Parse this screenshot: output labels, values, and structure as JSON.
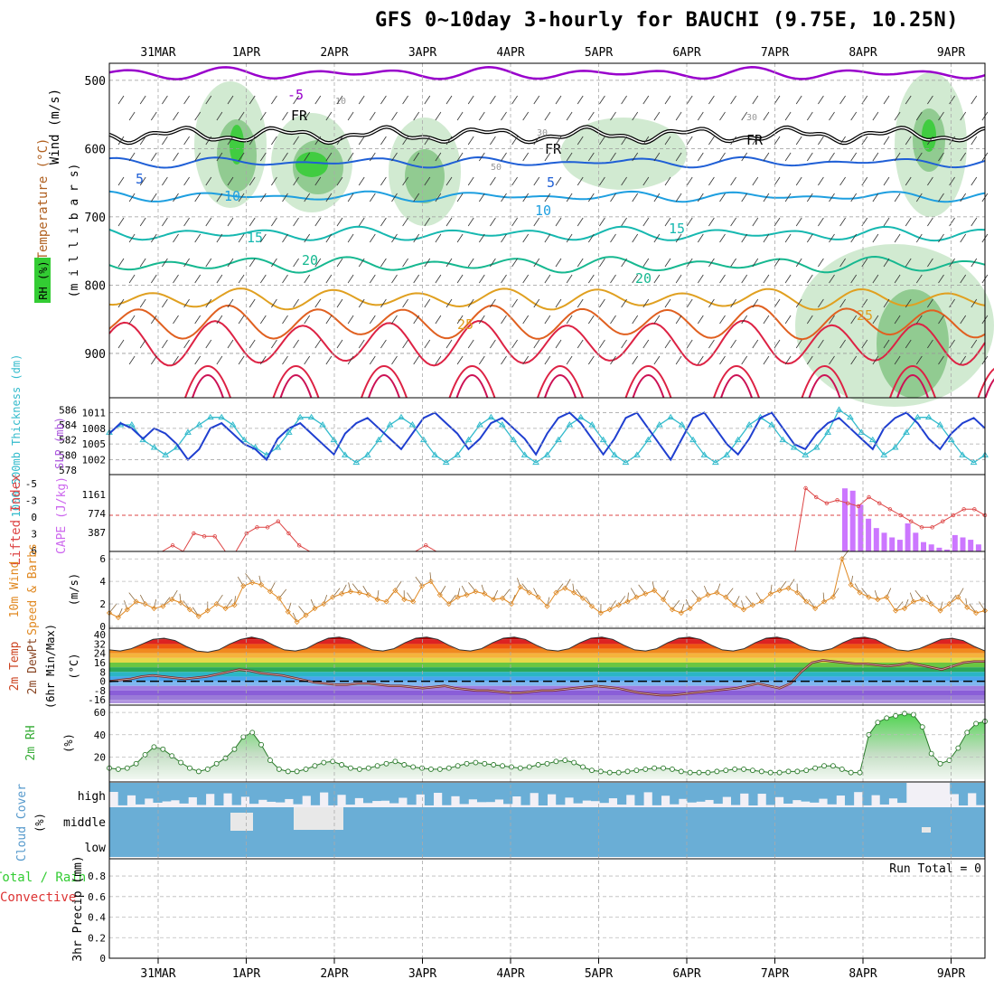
{
  "title": "GFS 0~10day 3-hourly for BAUCHI (9.75E, 10.25N)",
  "date_labels": [
    "31MAR",
    "1APR",
    "2APR",
    "3APR",
    "4APR",
    "5APR",
    "6APR",
    "7APR",
    "8APR",
    "9APR"
  ],
  "colors": {
    "rh_green": "#33cc33",
    "rh_mid": "#86c586",
    "rh_light": "#c9e6c9",
    "temp_cold": "#9900cc",
    "temp_5": "#1f5fd6",
    "temp_10": "#1e9fe0",
    "temp_15": "#16b8b0",
    "temp_20": "#16b890",
    "temp_25": "#e0a020",
    "temp_30": "#e06020",
    "temp_35": "#dd2244",
    "slp": "#1f3fd0",
    "thickness": "#33bbcc",
    "cape": "#cc77ff",
    "li": "#dd4444",
    "wind": "#e08820",
    "rh2m": "#33aa33",
    "cloud": "#6aaed6",
    "precip_green": "#33cc33",
    "precip_red": "#dd3333"
  },
  "panels": {
    "sounding": {
      "labels": {
        "wind": "Wind (m/s)",
        "temperature": "Temperature (°C)",
        "rh": "RH (%)",
        "pressure": "(m i l l i b a r s)"
      },
      "y_ticks": [
        "500",
        "600",
        "700",
        "800",
        "900"
      ],
      "contour_labels": [
        "-5",
        "FR",
        "FR",
        "FR",
        "5",
        "5",
        "10",
        "10",
        "15",
        "15",
        "20",
        "20",
        "25",
        "25",
        "10",
        "30",
        "30",
        "50"
      ]
    },
    "slp": {
      "labels": {
        "thickness": "1000-500mb Thickness (dm)",
        "slp": "SLP (mb)"
      },
      "left_ticks": [
        "586",
        "584",
        "582",
        "580",
        "578"
      ],
      "right_ticks": [
        "1011",
        "1008",
        "1005",
        "1002"
      ]
    },
    "cape": {
      "labels": {
        "li": "Lifted Index",
        "cape": "CAPE (J/kg)"
      },
      "left_ticks": [
        "-5",
        "-3",
        "0",
        "3",
        "6"
      ],
      "right_ticks": [
        "1161",
        "774",
        "387"
      ]
    },
    "wind": {
      "labels": {
        "main": "10m Wind",
        "sub": "Speed & Barbs",
        "unit": "(m/s)"
      },
      "ticks": [
        "6",
        "4",
        "2",
        "0"
      ]
    },
    "temp": {
      "labels": {
        "main": "2m Temp",
        "sub": "2m DewPt",
        "sub2": "(6hr Min/Max)",
        "unit": "(°C)"
      },
      "ticks": [
        "40",
        "32",
        "24",
        "16",
        "8",
        "0",
        "-8",
        "-16"
      ]
    },
    "rh2m": {
      "labels": {
        "main": "2m RH",
        "unit": "(%)"
      },
      "ticks": [
        "60",
        "40",
        "20"
      ]
    },
    "cloud": {
      "labels": {
        "main": "Cloud Cover",
        "unit": "(%)",
        "high": "high",
        "middle": "middle",
        "low": "low"
      }
    },
    "precip": {
      "labels": {
        "main": "3hr Precip (mm)",
        "legend1": "Total / Rain",
        "legend2": "Convective"
      },
      "ticks": [
        "0.8",
        "0.6",
        "0.4",
        "0.2",
        "0"
      ],
      "run_total": "Run Total = 0"
    }
  },
  "chart_data": [
    {
      "type": "line",
      "title": "1000-500mb Thickness (dm) / SLP (mb)",
      "x": "3-hourly steps from 31MAR 00Z to 9APR 18Z",
      "series": [
        {
          "name": "SLP (mb)",
          "axis": "right",
          "values": [
            1007,
            1009,
            1008,
            1006,
            1008,
            1007,
            1005,
            1002,
            1004,
            1008,
            1009,
            1007,
            1005,
            1004,
            1002,
            1006,
            1008,
            1009,
            1007,
            1005,
            1003,
            1007,
            1009,
            1010,
            1008,
            1006,
            1004,
            1007,
            1010,
            1011,
            1009,
            1007,
            1004,
            1006,
            1009,
            1010,
            1008,
            1006,
            1003,
            1007,
            1010,
            1011,
            1009,
            1006,
            1003,
            1006,
            1010,
            1011,
            1008,
            1005,
            1002,
            1006,
            1010,
            1011,
            1008,
            1005,
            1003,
            1006,
            1010,
            1011,
            1008,
            1005,
            1004,
            1007,
            1009,
            1010,
            1008,
            1006,
            1004,
            1008,
            1010,
            1011,
            1009,
            1006,
            1004,
            1007,
            1009,
            1010,
            1008
          ]
        },
        {
          "name": "1000-500mb Thickness (dm)",
          "axis": "left",
          "values": [
            583,
            584,
            584,
            582,
            581,
            580,
            581,
            583,
            584,
            585,
            585,
            584,
            582,
            581,
            580,
            581,
            583,
            585,
            585,
            584,
            582,
            580,
            579,
            580,
            582,
            584,
            585,
            584,
            582,
            580,
            579,
            580,
            582,
            584,
            585,
            584,
            582,
            580,
            579,
            580,
            582,
            584,
            585,
            584,
            582,
            580,
            579,
            580,
            582,
            584,
            585,
            584,
            582,
            580,
            579,
            580,
            582,
            584,
            585,
            584,
            582,
            581,
            580,
            581,
            583,
            586,
            585,
            583,
            582,
            580,
            581,
            583,
            585,
            585,
            584,
            582,
            580,
            579,
            580
          ]
        }
      ],
      "ylim_left": [
        578,
        587
      ],
      "ylim_right": [
        1000,
        1013
      ]
    },
    {
      "type": "bar",
      "title": "Lifted Index / CAPE (J/kg)",
      "cape_values": [
        1350,
        1300,
        1000,
        700,
        500,
        400,
        300,
        250,
        600,
        400,
        200,
        150,
        80,
        40,
        350,
        300,
        250,
        150
      ],
      "lifted_index": [
        6,
        6,
        6,
        6,
        6,
        6,
        5,
        6,
        3,
        3.5,
        3.5,
        6,
        6,
        3,
        2,
        2,
        1,
        3,
        5,
        6,
        6,
        6,
        6,
        6,
        6,
        6,
        6,
        6,
        6,
        6,
        5,
        6,
        6,
        6,
        6,
        6,
        6,
        6,
        6,
        6,
        6,
        6,
        6,
        6,
        6,
        6,
        6,
        6,
        6,
        6,
        6,
        6,
        6,
        6,
        6,
        6,
        6,
        6,
        6,
        6,
        6,
        6,
        6,
        6,
        6,
        6,
        -4.5,
        -3,
        -2,
        -2.5,
        -2,
        -1.5,
        -3,
        -2,
        -1,
        0,
        1,
        2,
        2,
        1,
        0,
        -1,
        -1,
        0
      ],
      "ylim_cape": [
        0,
        1548
      ],
      "ylim_li": [
        6,
        -6
      ]
    },
    {
      "type": "line",
      "title": "10m Wind Speed & Barbs (m/s)",
      "values": [
        1.2,
        0.8,
        1.5,
        2.2,
        2.0,
        1.6,
        1.8,
        2.4,
        2.1,
        1.5,
        0.9,
        1.4,
        2.0,
        1.6,
        1.9,
        3.6,
        3.9,
        3.7,
        3.1,
        2.5,
        1.3,
        0.4,
        1.0,
        1.6,
        2.0,
        2.6,
        2.9,
        3.1,
        3.0,
        2.8,
        2.4,
        2.2,
        3.2,
        2.4,
        2.2,
        3.6,
        4.0,
        2.8,
        2.0,
        2.6,
        2.8,
        3.1,
        2.9,
        2.4,
        2.5,
        2.0,
        3.5,
        3.0,
        2.6,
        1.8,
        3.0,
        3.4,
        3.0,
        2.5,
        1.8,
        1.2,
        1.5,
        1.9,
        2.2,
        2.6,
        2.9,
        3.2,
        2.4,
        1.5,
        1.2,
        1.6,
        2.4,
        2.8,
        3.0,
        2.6,
        1.9,
        1.5,
        1.9,
        2.2,
        2.9,
        3.2,
        3.4,
        3.0,
        2.2,
        1.6,
        2.2,
        2.6,
        6.0,
        3.7,
        3.0,
        2.6,
        2.4,
        2.6,
        1.4,
        1.6,
        2.2,
        2.4,
        2.0,
        1.4,
        2.0,
        2.6,
        1.7,
        1.2,
        1.4
      ],
      "ylim": [
        0,
        6.5
      ]
    },
    {
      "type": "area",
      "title": "2m Temp / 2m DewPt (°C)",
      "temp_values": [
        27,
        26,
        28,
        32,
        36,
        37,
        35,
        30,
        26,
        25,
        27,
        32,
        36,
        38,
        36,
        31,
        27,
        26,
        28,
        33,
        37,
        38,
        36,
        31,
        27,
        26,
        28,
        33,
        37,
        38,
        36,
        31,
        27,
        26,
        28,
        33,
        37,
        38,
        36,
        31,
        27,
        26,
        28,
        33,
        37,
        38,
        36,
        31,
        27,
        26,
        28,
        33,
        37,
        38,
        36,
        31,
        27,
        26,
        28,
        33,
        37,
        38,
        36,
        31,
        27,
        26,
        28,
        33,
        37,
        38,
        36,
        31,
        27,
        26,
        28,
        32,
        36,
        37,
        35,
        30,
        26
      ],
      "dewpt_values": [
        0,
        1,
        2,
        4,
        5,
        4,
        3,
        2,
        3,
        4,
        6,
        8,
        10,
        9,
        7,
        6,
        5,
        3,
        1,
        -1,
        -2,
        -3,
        -3,
        -2,
        -2,
        -3,
        -4,
        -4,
        -5,
        -6,
        -5,
        -4,
        -6,
        -7,
        -8,
        -8,
        -9,
        -10,
        -10,
        -9,
        -8,
        -8,
        -7,
        -6,
        -5,
        -4,
        -5,
        -6,
        -8,
        -10,
        -11,
        -12,
        -12,
        -11,
        -10,
        -9,
        -8,
        -7,
        -6,
        -4,
        -2,
        -4,
        -6,
        -2,
        8,
        16,
        18,
        17,
        16,
        15,
        15,
        14,
        13,
        14,
        16,
        14,
        12,
        10,
        13,
        16,
        17,
        17
      ],
      "ylim": [
        -19,
        44
      ]
    },
    {
      "type": "area",
      "title": "2m RH (%)",
      "values": [
        10,
        9,
        10,
        14,
        22,
        29,
        27,
        21,
        15,
        10,
        7,
        9,
        14,
        19,
        27,
        38,
        42,
        31,
        17,
        9,
        7,
        7,
        9,
        12,
        15,
        16,
        13,
        10,
        9,
        10,
        12,
        14,
        16,
        13,
        11,
        10,
        9,
        9,
        10,
        12,
        14,
        15,
        14,
        13,
        12,
        11,
        10,
        11,
        13,
        14,
        16,
        17,
        15,
        11,
        8,
        7,
        6,
        6,
        7,
        8,
        9,
        10,
        10,
        9,
        7,
        6,
        6,
        6,
        7,
        8,
        9,
        9,
        8,
        7,
        6,
        6,
        7,
        7,
        8,
        10,
        12,
        12,
        9,
        6,
        6,
        40,
        51,
        55,
        57,
        59,
        58,
        47,
        23,
        14,
        17,
        28,
        42,
        50,
        52
      ],
      "ylim": [
        0,
        65
      ]
    }
  ]
}
